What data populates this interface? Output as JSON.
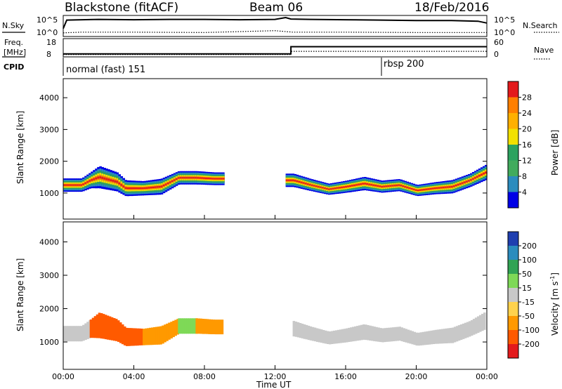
{
  "header": {
    "station": "Blackstone (fitACF)",
    "beam": "Beam 06",
    "date": "18/Feb/2016"
  },
  "nsky_panel": {
    "left_label": "N.Sky",
    "right_label": "N.Search",
    "left_ticks": [
      "10^5",
      "10^0"
    ],
    "right_ticks": [
      "10^5",
      "10^0"
    ]
  },
  "freq_panel": {
    "left_label_1": "Freq.",
    "left_label_2": "[MHz]",
    "left_ticks": [
      "18",
      "8"
    ],
    "right_label": "Nave",
    "right_ticks": [
      "60",
      "0"
    ]
  },
  "cpid_panel": {
    "label": "CPID",
    "modes": [
      {
        "name": "normal (fast) 151",
        "start_hour": 0
      },
      {
        "name": "rbsp 200",
        "start_hour": 18
      }
    ]
  },
  "power_panel": {
    "ylabel": "Slant Range [km]",
    "colorbar_label": "Power [dB]",
    "colorbar_ticks": [
      "28",
      "24",
      "20",
      "16",
      "12",
      "8",
      "4"
    ],
    "colorbar_colors": [
      "#e31a1c",
      "#ff7f00",
      "#ffb000",
      "#f2e000",
      "#2ca25f",
      "#41ab5d",
      "#2b8cbe",
      "#0000e6"
    ]
  },
  "velocity_panel": {
    "ylabel": "Slant Range [km]",
    "colorbar_label": "Velocity [m s^-1]",
    "colorbar_ticks": [
      "200",
      "100",
      "50",
      "15",
      "-15",
      "-50",
      "-100",
      "-200"
    ],
    "colorbar_colors": [
      "#1f3fb0",
      "#2b8cbe",
      "#31a354",
      "#7ed957",
      "#c8c8c8",
      "#ffd24d",
      "#ff9900",
      "#ff5a00",
      "#e31a1c"
    ]
  },
  "xaxis": {
    "label": "Time UT",
    "ticks": [
      "00:00",
      "04:00",
      "08:00",
      "12:00",
      "16:00",
      "20:00",
      "00:00"
    ]
  },
  "chart_data": [
    {
      "type": "line",
      "title": "N.Sky / N.Search",
      "x_range_hours": [
        0,
        24
      ],
      "series": [
        {
          "name": "N.Sky",
          "x": [
            0,
            0.2,
            2,
            4,
            6,
            8,
            10,
            12,
            12.6,
            12.9,
            14,
            16,
            18,
            20,
            22,
            23.5,
            24
          ],
          "y_log10": [
            2.0,
            4.3,
            4.5,
            4.4,
            4.5,
            4.5,
            4.4,
            4.5,
            5.0,
            4.6,
            4.5,
            4.4,
            4.3,
            4.2,
            4.2,
            4.0,
            3.5
          ]
        },
        {
          "name": "N.Search",
          "x": [
            0,
            1,
            4,
            8,
            12,
            13,
            16,
            20,
            24
          ],
          "y_log10": [
            0.8,
            1.0,
            1.0,
            0.9,
            1.4,
            1.0,
            1.0,
            0.9,
            0.9
          ]
        }
      ]
    },
    {
      "type": "line",
      "title": "Freq / Nave",
      "x_range_hours": [
        0,
        24
      ],
      "series": [
        {
          "name": "Freq.",
          "unit": "MHz",
          "x": [
            0,
            12.9,
            12.9,
            24
          ],
          "y": [
            10.5,
            10.5,
            16.5,
            16.5
          ]
        },
        {
          "name": "Nave",
          "x": [
            0,
            12.9,
            12.9,
            24
          ],
          "y": [
            12,
            12,
            28,
            28
          ]
        }
      ]
    },
    {
      "type": "heatmap",
      "title": "Power [dB]",
      "xlabel": "Time UT",
      "ylabel": "Slant Range [km]",
      "xlim_hours": [
        0,
        24
      ],
      "ylim_km": [
        180,
        4600
      ],
      "clim": [
        0,
        30
      ],
      "band": {
        "hours": [
          0.0,
          1.0,
          1.5,
          2.0,
          3.0,
          3.5,
          4.5,
          5.5,
          6.5,
          7.5,
          8.5,
          9.0,
          12.5,
          13.0,
          14.0,
          15.0,
          16.0,
          17.0,
          18.0,
          19.0,
          20.0,
          21.0,
          22.0,
          23.0,
          23.9
        ],
        "center": [
          1250,
          1250,
          1400,
          1500,
          1350,
          1150,
          1150,
          1200,
          1480,
          1480,
          1450,
          1450,
          1400,
          1400,
          1250,
          1120,
          1200,
          1300,
          1200,
          1250,
          1080,
          1150,
          1200,
          1400,
          1650
        ],
        "width_km": [
          420,
          420,
          500,
          700,
          600,
          500,
          450,
          500,
          420,
          420,
          400,
          400,
          420,
          420,
          380,
          350,
          380,
          420,
          380,
          380,
          350,
          380,
          420,
          420,
          480
        ]
      },
      "peak_power_db": 28
    },
    {
      "type": "heatmap",
      "title": "Velocity [m s^-1]",
      "xlabel": "Time UT",
      "ylabel": "Slant Range [km]",
      "xlim_hours": [
        0,
        24
      ],
      "ylim_km": [
        180,
        4600
      ],
      "clim": [
        -200,
        200
      ],
      "segments": [
        {
          "start_hour": 0.0,
          "end_hour": 1.5,
          "velocity": 0
        },
        {
          "start_hour": 1.5,
          "end_hour": 4.5,
          "velocity": -120
        },
        {
          "start_hour": 4.5,
          "end_hour": 6.5,
          "velocity": -60
        },
        {
          "start_hour": 6.5,
          "end_hour": 7.5,
          "velocity": 30
        },
        {
          "start_hour": 7.5,
          "end_hour": 9.0,
          "velocity": -60
        },
        {
          "start_hour": 13.0,
          "end_hour": 23.9,
          "velocity": 0
        }
      ]
    }
  ]
}
